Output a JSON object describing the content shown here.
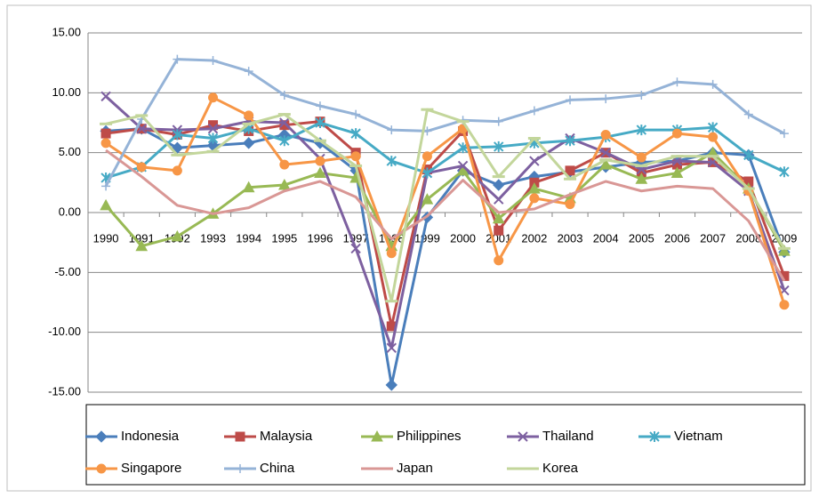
{
  "chart_data": {
    "type": "line",
    "categories": [
      "1990",
      "1991",
      "1992",
      "1993",
      "1994",
      "1995",
      "1996",
      "1997",
      "1998",
      "1999",
      "2000",
      "2001",
      "2002",
      "2003",
      "2004",
      "2005",
      "2006",
      "2007",
      "2008",
      "2009"
    ],
    "ylim": [
      -15,
      15
    ],
    "yticks": [
      {
        "value": -15,
        "label": "-15.00"
      },
      {
        "value": -10,
        "label": "-10.00"
      },
      {
        "value": -5,
        "label": "-5.00"
      },
      {
        "value": 0,
        "label": "0.00"
      },
      {
        "value": 5,
        "label": "5.00"
      },
      {
        "value": 10,
        "label": "10.00"
      },
      {
        "value": 15,
        "label": "15.00"
      }
    ],
    "grid": true,
    "legend": "bottom",
    "series": [
      {
        "name": "Indonesia",
        "color": "#4a7ebb",
        "marker": "diamond",
        "values": [
          6.8,
          7.0,
          5.4,
          5.6,
          5.8,
          6.5,
          5.8,
          3.5,
          -14.4,
          -0.4,
          3.5,
          2.3,
          3.0,
          3.4,
          3.8,
          4.2,
          4.3,
          5.0,
          4.8,
          -3.3
        ]
      },
      {
        "name": "Malaysia",
        "color": "#be4b48",
        "marker": "square",
        "values": [
          6.6,
          7.0,
          6.5,
          7.3,
          6.8,
          7.3,
          7.6,
          5.0,
          -9.5,
          3.6,
          6.8,
          -1.5,
          2.5,
          3.5,
          5.0,
          3.3,
          4.0,
          4.2,
          2.6,
          -5.3
        ]
      },
      {
        "name": "Philippines",
        "color": "#98b954",
        "marker": "triangle",
        "values": [
          0.6,
          -2.8,
          -2.0,
          -0.1,
          2.1,
          2.3,
          3.3,
          2.9,
          -2.8,
          1.1,
          3.5,
          -0.5,
          2.0,
          1.2,
          4.0,
          2.8,
          3.3,
          5.0,
          2.0,
          -3.2
        ]
      },
      {
        "name": "Thailand",
        "color": "#7d60a0",
        "marker": "x",
        "values": [
          9.7,
          7.0,
          6.9,
          7.0,
          7.6,
          7.5,
          4.5,
          -3.0,
          -11.3,
          3.3,
          3.9,
          1.1,
          4.3,
          6.2,
          5.0,
          3.6,
          4.3,
          4.2,
          1.8,
          -6.5
        ]
      },
      {
        "name": "Vietnam",
        "color": "#46aac5",
        "marker": "star",
        "values": [
          2.9,
          3.8,
          6.5,
          6.2,
          7.0,
          6.0,
          7.5,
          6.6,
          4.3,
          3.3,
          5.4,
          5.5,
          5.8,
          6.0,
          6.3,
          6.9,
          6.9,
          7.1,
          4.8,
          3.4
        ]
      },
      {
        "name": "Singapore",
        "color": "#f79646",
        "marker": "circle",
        "values": [
          5.8,
          3.8,
          3.5,
          9.6,
          8.1,
          4.0,
          4.3,
          4.7,
          -3.4,
          4.7,
          7.0,
          -4.0,
          1.2,
          0.7,
          6.5,
          4.6,
          6.6,
          6.3,
          1.8,
          -7.7
        ]
      },
      {
        "name": "China",
        "color": "#95b3d7",
        "marker": "plus",
        "values": [
          2.2,
          7.8,
          12.8,
          12.7,
          11.8,
          9.8,
          8.9,
          8.2,
          6.9,
          6.8,
          7.7,
          7.6,
          8.5,
          9.4,
          9.5,
          9.8,
          10.9,
          10.7,
          8.2,
          6.6
        ]
      },
      {
        "name": "Japan",
        "color": "#d99795",
        "marker": "none",
        "values": [
          5.2,
          3.0,
          0.6,
          -0.1,
          0.4,
          1.8,
          2.6,
          1.3,
          -2.2,
          -0.3,
          2.7,
          0.0,
          0.3,
          1.5,
          2.6,
          1.8,
          2.2,
          2.0,
          -0.7,
          -5.7
        ]
      },
      {
        "name": "Korea",
        "color": "#c3d69b",
        "marker": "dash",
        "values": [
          7.4,
          8.1,
          4.8,
          5.1,
          7.4,
          8.2,
          6.0,
          3.9,
          -7.4,
          8.6,
          7.6,
          3.0,
          6.2,
          2.8,
          4.4,
          3.9,
          4.7,
          4.7,
          2.0,
          -3.0
        ]
      }
    ]
  }
}
